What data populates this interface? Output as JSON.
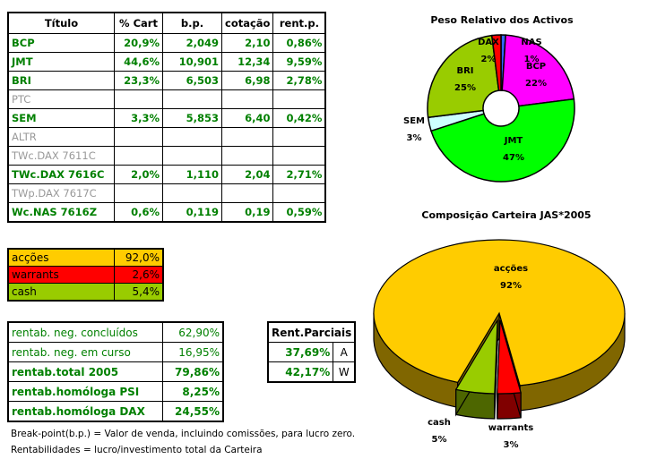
{
  "main_table": {
    "headers": [
      "Título",
      "% Cart",
      "b.p.",
      "cotação",
      "rent.p."
    ],
    "rows": [
      {
        "name": "BCP",
        "cart": "20,9%",
        "bp": "2,049",
        "cot": "2,10",
        "rent": "0,86%",
        "active": true
      },
      {
        "name": "JMT",
        "cart": "44,6%",
        "bp": "10,901",
        "cot": "12,34",
        "rent": "9,59%",
        "active": true
      },
      {
        "name": "BRI",
        "cart": "23,3%",
        "bp": "6,503",
        "cot": "6,98",
        "rent": "2,78%",
        "active": true
      },
      {
        "name": "PTC",
        "cart": "",
        "bp": "",
        "cot": "",
        "rent": "",
        "active": false
      },
      {
        "name": "SEM",
        "cart": "3,3%",
        "bp": "5,853",
        "cot": "6,40",
        "rent": "0,42%",
        "active": true
      },
      {
        "name": "ALTR",
        "cart": "",
        "bp": "",
        "cot": "",
        "rent": "",
        "active": false
      },
      {
        "name": "TWc.DAX 7611C",
        "cart": "",
        "bp": "",
        "cot": "",
        "rent": "",
        "active": false
      },
      {
        "name": "TWc.DAX 7616C",
        "cart": "2,0%",
        "bp": "1,110",
        "cot": "2,04",
        "rent": "2,71%",
        "active": true
      },
      {
        "name": "TWp.DAX 7617C",
        "cart": "",
        "bp": "",
        "cot": "",
        "rent": "",
        "active": false
      },
      {
        "name": "Wc.NAS 7616Z",
        "cart": "0,6%",
        "bp": "0,119",
        "cot": "0,19",
        "rent": "0,59%",
        "active": true
      }
    ]
  },
  "allocation": [
    {
      "label": "acções",
      "value": "92,0%",
      "color": "#ffcc00"
    },
    {
      "label": "warrants",
      "value": "2,6%",
      "color": "#ff0000"
    },
    {
      "label": "cash",
      "value": "5,4%",
      "color": "#99cc00"
    }
  ],
  "rentab": [
    {
      "label": "rentab. neg. concluídos",
      "value": "62,90%",
      "bold": false
    },
    {
      "label": "rentab. neg. em curso",
      "value": "16,95%",
      "bold": false
    },
    {
      "label": "rentab.total 2005",
      "value": "79,86%",
      "bold": true
    },
    {
      "label": "rentab.homóloga PSI",
      "value": "8,25%",
      "bold": true
    },
    {
      "label": "rentab.homóloga DAX",
      "value": "24,55%",
      "bold": true
    }
  ],
  "parciais": {
    "title": "Rent.Parciais",
    "rows": [
      {
        "value": "37,69%",
        "tag": "A"
      },
      {
        "value": "42,17%",
        "tag": "W"
      }
    ]
  },
  "notes": [
    "Break-point(b.p.) = Valor de venda, incluindo comissões, para lucro zero.",
    "Rentabilidades = lucro/investimento total da Carteira"
  ],
  "chart_data": [
    {
      "type": "pie",
      "title": "Peso Relativo dos Activos",
      "style": "donut",
      "slices": [
        {
          "label": "NAS",
          "value": 1,
          "text": "1%",
          "color": "#3366ff"
        },
        {
          "label": "BCP",
          "value": 22,
          "text": "22%",
          "color": "#ff00ff"
        },
        {
          "label": "JMT",
          "value": 47,
          "text": "47%",
          "color": "#00ff00"
        },
        {
          "label": "SEM",
          "value": 3,
          "text": "3%",
          "color": "#ccffff"
        },
        {
          "label": "BRI",
          "value": 25,
          "text": "25%",
          "color": "#99cc00"
        },
        {
          "label": "DAX",
          "value": 2,
          "text": "2%",
          "color": "#ff0000"
        }
      ]
    },
    {
      "type": "pie",
      "title": "Composição Carteira JAS*2005",
      "style": "3d",
      "slices": [
        {
          "label": "acções",
          "value": 92,
          "text": "92%",
          "color": "#ffcc00",
          "side": "#806600"
        },
        {
          "label": "warrants",
          "value": 3,
          "text": "3%",
          "color": "#ff0000",
          "side": "#800000"
        },
        {
          "label": "cash",
          "value": 5,
          "text": "5%",
          "color": "#99cc00",
          "side": "#4d6600"
        }
      ]
    }
  ]
}
